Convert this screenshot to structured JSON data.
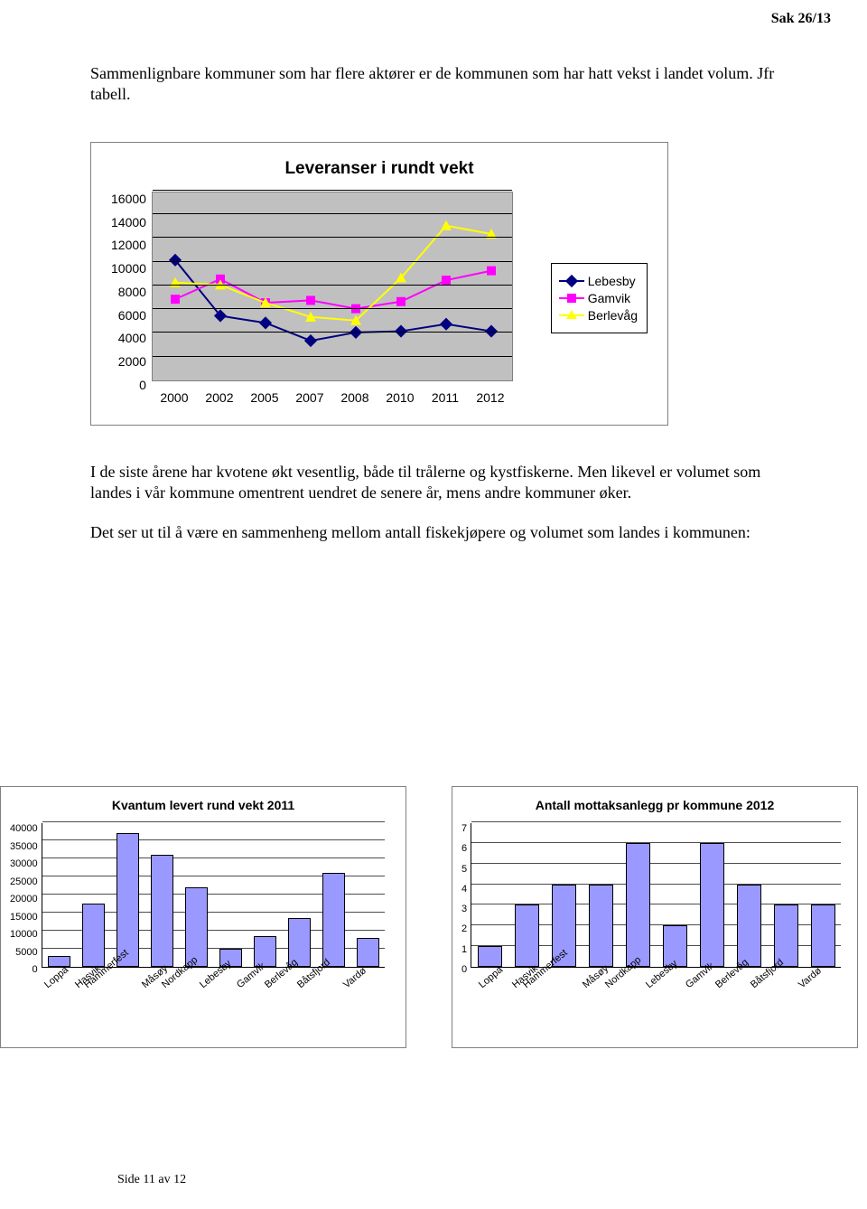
{
  "header": {
    "case_no": "Sak 26/13"
  },
  "paragraphs": {
    "p1": "Sammenlignbare kommuner som har flere aktører er de kommunen som har hatt vekst i landet volum. Jfr tabell.",
    "p2": "I de siste årene har kvotene økt vesentlig, både til trålerne og kystfiskerne. Men likevel er volumet som landes i vår kommune omentrent uendret de senere år, mens andre kommuner øker.",
    "p3": "Det ser ut til å være en sammenheng mellom antall fiskekjøpere og volumet som landes i kommunen:"
  },
  "line_chart": {
    "type": "line",
    "title": "Leveranser i rundt vekt",
    "xlabels": [
      "2000",
      "2002",
      "2005",
      "2007",
      "2008",
      "2010",
      "2011",
      "2012"
    ],
    "ylabels": [
      "16000",
      "14000",
      "12000",
      "10000",
      "8000",
      "6000",
      "4000",
      "2000",
      "0"
    ],
    "ylim": [
      0,
      16000
    ],
    "background_color": "#c0c0c0",
    "grid_color": "#000000",
    "series": [
      {
        "name": "Lebesby",
        "color": "#000080",
        "marker": "diamond",
        "values": [
          10300,
          5600,
          5000,
          3500,
          4200,
          4300,
          4900,
          4300
        ]
      },
      {
        "name": "Gamvik",
        "color": "#ff00ff",
        "marker": "square",
        "values": [
          7000,
          8700,
          6700,
          6900,
          6200,
          6800,
          8600,
          9400
        ]
      },
      {
        "name": "Berlevåg",
        "color": "#ffff00",
        "marker": "triangle",
        "values": [
          8400,
          8200,
          6700,
          5500,
          5200,
          8800,
          13200,
          12500
        ]
      }
    ],
    "legend_labels": {
      "lebesby": "Lebesby",
      "gamvik": "Gamvik",
      "berlevag": "Berlevåg"
    }
  },
  "bar_chart_left": {
    "type": "bar",
    "title": "Kvantum levert rund vekt 2011",
    "title_fontsize": 14,
    "categories": [
      "Loppa",
      "Hasvik",
      "Hammerfest",
      "Måsøy",
      "Nordkapp",
      "Lebesby",
      "Gamvik",
      "Berlevåg",
      "Båtsfjord",
      "Vardø"
    ],
    "values": [
      3000,
      17500,
      37000,
      31000,
      22000,
      5000,
      8500,
      13500,
      26000,
      8000
    ],
    "ylim": [
      0,
      40000
    ],
    "ytick_step": 5000,
    "bar_color": "#9999ff",
    "bar_border": "#000000",
    "axis_fontsize": 11
  },
  "bar_chart_right": {
    "type": "bar",
    "title": "Antall mottaksanlegg pr kommune 2012",
    "title_fontsize": 14,
    "categories": [
      "Loppa",
      "Hasvik",
      "Hammerfest",
      "Måsøy",
      "Nordkapp",
      "Lebesby",
      "Gamvik",
      "Berlevåg",
      "Båtsfjord",
      "Vardø"
    ],
    "values": [
      1,
      3,
      4,
      4,
      6,
      2,
      6,
      4,
      3,
      3
    ],
    "ylim": [
      0,
      7
    ],
    "ytick_step": 1,
    "bar_color": "#9999ff",
    "bar_border": "#000000",
    "axis_fontsize": 11
  },
  "footer": {
    "page": "Side 11 av 12"
  }
}
